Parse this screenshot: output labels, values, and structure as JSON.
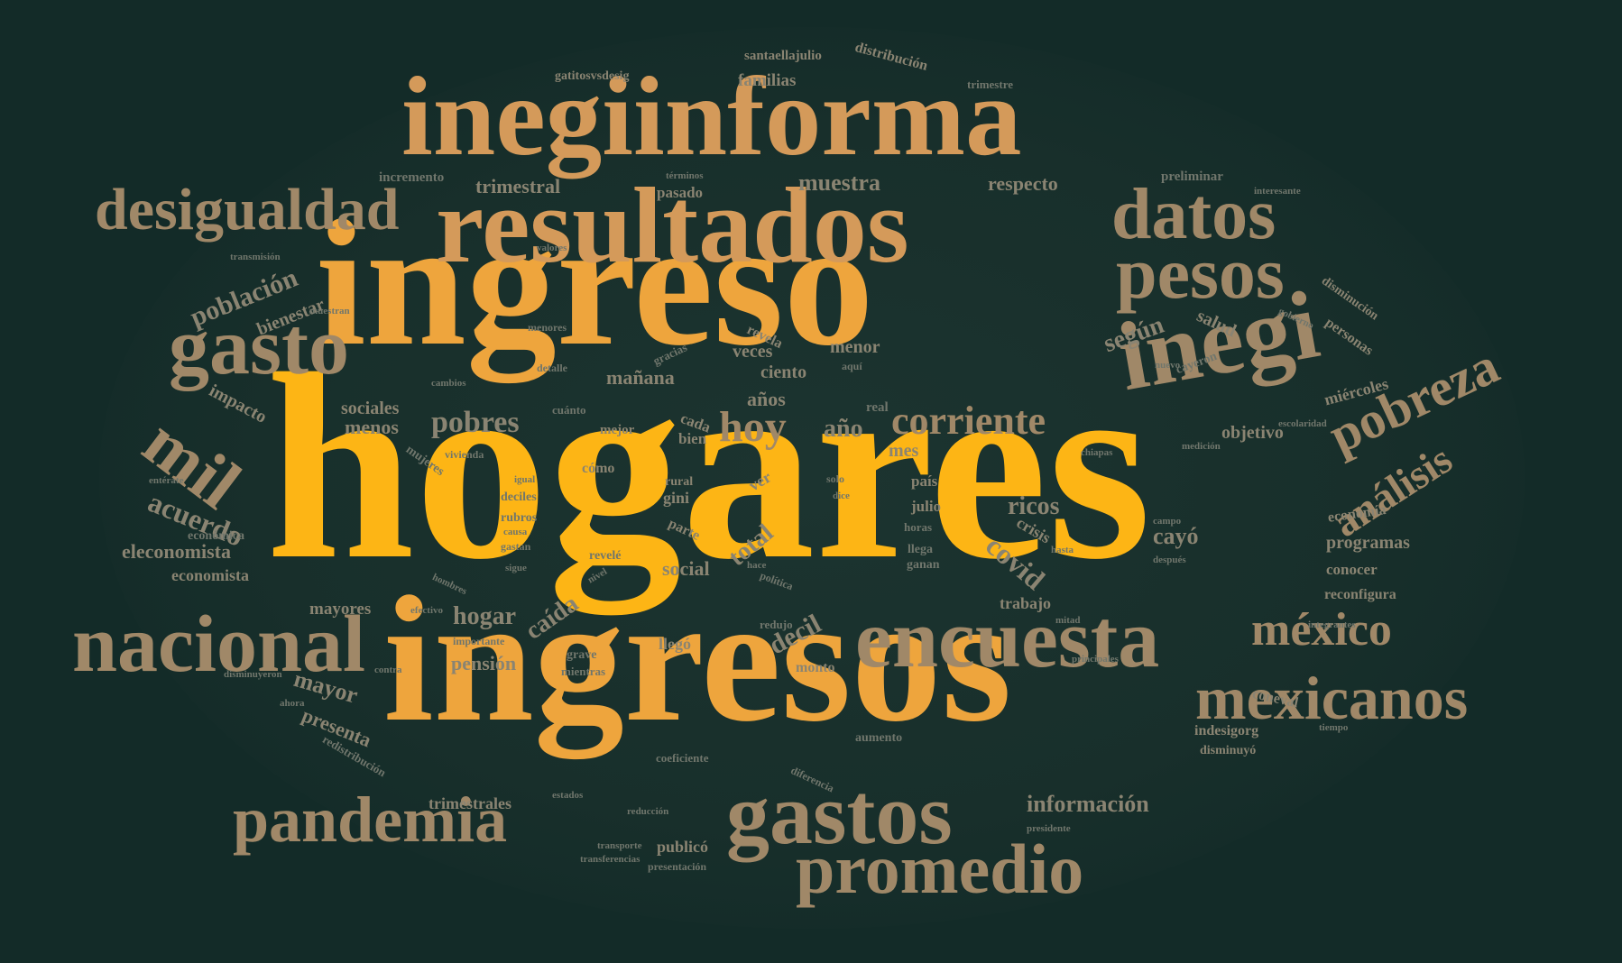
{
  "colors": {
    "background": "#132b28",
    "xl": "#fdb515",
    "l": "#eea53d",
    "m": "#d49a5a",
    "s": "#a08868",
    "xs": "#8a8472",
    "xxs": "#70766c"
  },
  "words": [
    {
      "text": "hogares",
      "tier": "xl"
    },
    {
      "text": "ingreso",
      "tier": "l"
    },
    {
      "text": "ingresos",
      "tier": "l"
    },
    {
      "text": "inegiinforma",
      "tier": "m"
    },
    {
      "text": "resultados",
      "tier": "m"
    },
    {
      "text": "desigualdad",
      "tier": "s"
    },
    {
      "text": "datos",
      "tier": "s"
    },
    {
      "text": "pesos",
      "tier": "s"
    },
    {
      "text": "gasto",
      "tier": "s"
    },
    {
      "text": "inegi",
      "tier": "s"
    },
    {
      "text": "pobreza",
      "tier": "s"
    },
    {
      "text": "análisis",
      "tier": "s"
    },
    {
      "text": "mil",
      "tier": "s"
    },
    {
      "text": "nacional",
      "tier": "s"
    },
    {
      "text": "encuesta",
      "tier": "s"
    },
    {
      "text": "méxico",
      "tier": "s"
    },
    {
      "text": "mexicanos",
      "tier": "s"
    },
    {
      "text": "pandemia",
      "tier": "s"
    },
    {
      "text": "gastos",
      "tier": "s"
    },
    {
      "text": "promedio",
      "tier": "s"
    },
    {
      "text": "corriente",
      "tier": "s"
    },
    {
      "text": "hoy",
      "tier": "s"
    },
    {
      "text": "población",
      "tier": "xs"
    },
    {
      "text": "bienestar",
      "tier": "xs"
    },
    {
      "text": "acuerdo",
      "tier": "xs"
    },
    {
      "text": "eleconomista",
      "tier": "xs"
    },
    {
      "text": "económica",
      "tier": "xxs"
    },
    {
      "text": "economista",
      "tier": "xs"
    },
    {
      "text": "impacto",
      "tier": "xs"
    },
    {
      "text": "mayores",
      "tier": "xs"
    },
    {
      "text": "mayor",
      "tier": "xs"
    },
    {
      "text": "presenta",
      "tier": "xs"
    },
    {
      "text": "redistribución",
      "tier": "xxs"
    },
    {
      "text": "trimestrales",
      "tier": "xs"
    },
    {
      "text": "publicó",
      "tier": "xs"
    },
    {
      "text": "información",
      "tier": "xs"
    },
    {
      "text": "según",
      "tier": "xs"
    },
    {
      "text": "salud",
      "tier": "xs"
    },
    {
      "text": "cayeron",
      "tier": "xxs"
    },
    {
      "text": "miércoles",
      "tier": "xs"
    },
    {
      "text": "objetivo",
      "tier": "xs"
    },
    {
      "text": "economía",
      "tier": "xs"
    },
    {
      "text": "programas",
      "tier": "xs"
    },
    {
      "text": "conocer",
      "tier": "xs"
    },
    {
      "text": "reconfigura",
      "tier": "xs"
    },
    {
      "text": "indesigorg",
      "tier": "xs"
    },
    {
      "text": "disminuyó",
      "tier": "xs"
    },
    {
      "text": "coneval",
      "tier": "xs"
    },
    {
      "text": "cayó",
      "tier": "xs"
    },
    {
      "text": "covid",
      "tier": "xs"
    },
    {
      "text": "crisis",
      "tier": "xs"
    },
    {
      "text": "ricos",
      "tier": "xs"
    },
    {
      "text": "trabajo",
      "tier": "xs"
    },
    {
      "text": "decil",
      "tier": "xs"
    },
    {
      "text": "hogar",
      "tier": "xs"
    },
    {
      "text": "caída",
      "tier": "xs"
    },
    {
      "text": "pensión",
      "tier": "xs"
    },
    {
      "text": "llegó",
      "tier": "xs"
    },
    {
      "text": "grave",
      "tier": "xxs"
    },
    {
      "text": "mientras",
      "tier": "xxs"
    },
    {
      "text": "monto",
      "tier": "xs"
    },
    {
      "text": "social",
      "tier": "xs"
    },
    {
      "text": "total",
      "tier": "xs"
    },
    {
      "text": "pobres",
      "tier": "xs"
    },
    {
      "text": "sociales",
      "tier": "xs"
    },
    {
      "text": "menos",
      "tier": "xs"
    },
    {
      "text": "mes",
      "tier": "xs"
    },
    {
      "text": "año",
      "tier": "xs"
    },
    {
      "text": "años",
      "tier": "xs"
    },
    {
      "text": "real",
      "tier": "xxs"
    },
    {
      "text": "mañana",
      "tier": "xs"
    },
    {
      "text": "veces",
      "tier": "xs"
    },
    {
      "text": "ciento",
      "tier": "xs"
    },
    {
      "text": "menor",
      "tier": "xs"
    },
    {
      "text": "revela",
      "tier": "xs"
    },
    {
      "text": "muestra",
      "tier": "xs"
    },
    {
      "text": "respecto",
      "tier": "xs"
    },
    {
      "text": "preliminar",
      "tier": "xxs"
    },
    {
      "text": "incremento",
      "tier": "xxs"
    },
    {
      "text": "trimestral",
      "tier": "xs"
    },
    {
      "text": "pasado",
      "tier": "xs"
    },
    {
      "text": "familias",
      "tier": "xs"
    },
    {
      "text": "distribución",
      "tier": "xs"
    },
    {
      "text": "santaellajulio",
      "tier": "xs"
    },
    {
      "text": "gatitosvsdesig",
      "tier": "xs"
    },
    {
      "text": "trimestre",
      "tier": "xxs"
    },
    {
      "text": "personas",
      "tier": "xs"
    },
    {
      "text": "disminución",
      "tier": "xs"
    },
    {
      "text": "gobierno",
      "tier": "xxs"
    },
    {
      "text": "cada",
      "tier": "xs"
    },
    {
      "text": "bien",
      "tier": "xs"
    },
    {
      "text": "mejor",
      "tier": "xs"
    },
    {
      "text": "cómo",
      "tier": "xs"
    },
    {
      "text": "gini",
      "tier": "xs"
    },
    {
      "text": "rural",
      "tier": "xs"
    },
    {
      "text": "parte",
      "tier": "xs"
    },
    {
      "text": "deciles",
      "tier": "xxs"
    },
    {
      "text": "rubros",
      "tier": "xxs"
    },
    {
      "text": "gastan",
      "tier": "xxs"
    },
    {
      "text": "revelé",
      "tier": "xxs"
    },
    {
      "text": "país",
      "tier": "xs"
    },
    {
      "text": "julio",
      "tier": "xs"
    },
    {
      "text": "horas",
      "tier": "xxs"
    },
    {
      "text": "llega",
      "tier": "xxs"
    },
    {
      "text": "ganan",
      "tier": "xxs"
    },
    {
      "text": "solo",
      "tier": "xxs"
    },
    {
      "text": "ver",
      "tier": "xs"
    },
    {
      "text": "aumento",
      "tier": "xxs"
    },
    {
      "text": "coeficiente",
      "tier": "xxs"
    },
    {
      "text": "diferencia",
      "tier": "xxs"
    },
    {
      "text": "presentación",
      "tier": "xxs"
    },
    {
      "text": "transferencias",
      "tier": "xxs"
    },
    {
      "text": "importante",
      "tier": "xxs"
    },
    {
      "text": "vivienda",
      "tier": "xxs"
    },
    {
      "text": "mujeres",
      "tier": "xxs"
    },
    {
      "text": "aquí",
      "tier": "xxs"
    },
    {
      "text": "redujo",
      "tier": "xxs"
    },
    {
      "text": "política",
      "tier": "xxs"
    },
    {
      "text": "hace",
      "tier": "xxs"
    },
    {
      "text": "después",
      "tier": "xxs"
    },
    {
      "text": "presidente",
      "tier": "xxs"
    },
    {
      "text": "mitad",
      "tier": "xxs"
    },
    {
      "text": "nivel",
      "tier": "xxs"
    },
    {
      "text": "hombres",
      "tier": "xxs"
    },
    {
      "text": "cambios",
      "tier": "xxs"
    },
    {
      "text": "menores",
      "tier": "xxs"
    },
    {
      "text": "muestran",
      "tier": "xxs"
    },
    {
      "text": "gracias",
      "tier": "xxs"
    },
    {
      "text": "cuánto",
      "tier": "xxs"
    },
    {
      "text": "detalle",
      "tier": "xxs"
    },
    {
      "text": "nuevo",
      "tier": "xxs"
    },
    {
      "text": "dice",
      "tier": "xxs"
    },
    {
      "text": "términos",
      "tier": "xxs"
    },
    {
      "text": "principales",
      "tier": "xxs"
    },
    {
      "text": "sigue",
      "tier": "xxs"
    },
    {
      "text": "causa",
      "tier": "xxs"
    },
    {
      "text": "igual",
      "tier": "xxs"
    },
    {
      "text": "transporte",
      "tier": "xxs"
    },
    {
      "text": "reducción",
      "tier": "xxs"
    },
    {
      "text": "estados",
      "tier": "xxs"
    },
    {
      "text": "valores",
      "tier": "xxs"
    },
    {
      "text": "transmisión",
      "tier": "xxs"
    },
    {
      "text": "campo",
      "tier": "xxs"
    },
    {
      "text": "interesante",
      "tier": "xxs"
    },
    {
      "text": "medición",
      "tier": "xxs"
    },
    {
      "text": "escolaridad",
      "tier": "xxs"
    },
    {
      "text": "chiapas",
      "tier": "xxs"
    },
    {
      "text": "integrantes",
      "tier": "xxs"
    },
    {
      "text": "efectivo",
      "tier": "xxs"
    },
    {
      "text": "disminuyeron",
      "tier": "xxs"
    },
    {
      "text": "tiempo",
      "tier": "xxs"
    },
    {
      "text": "contra",
      "tier": "xxs"
    },
    {
      "text": "entérate",
      "tier": "xxs"
    },
    {
      "text": "hasta",
      "tier": "xxs"
    },
    {
      "text": "ahora",
      "tier": "xxs"
    }
  ]
}
